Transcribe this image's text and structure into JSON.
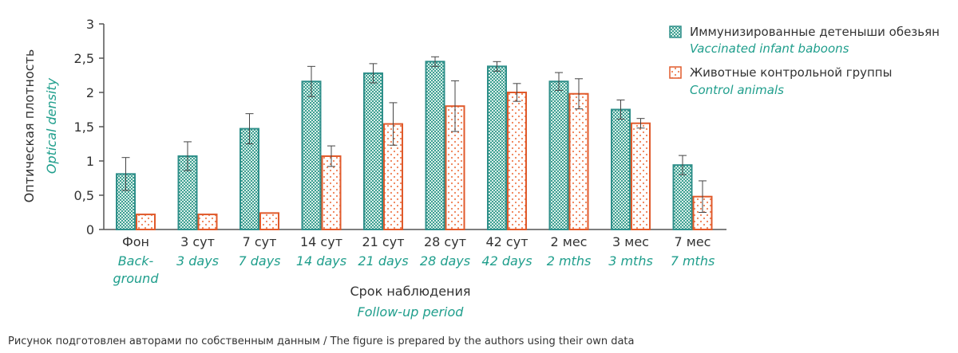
{
  "colors": {
    "vaccinated_border": "#2f8f8a",
    "vaccinated_fill": "#59b3a3",
    "control_border": "#e05a2b",
    "control_dots": "#f08055",
    "en_text": "#1f9e8c",
    "axis": "#555555"
  },
  "chart_data": {
    "type": "bar",
    "ylim": [
      0,
      3
    ],
    "y_ticks": [
      "0",
      "0,5",
      "1",
      "1,5",
      "2",
      "2,5",
      "3"
    ],
    "y_tick_values": [
      0,
      0.5,
      1,
      1.5,
      2,
      2.5,
      3
    ],
    "ylabel": "Оптическая плотность",
    "ylabel_en": "Optical density",
    "xlabel": "Срок наблюдения",
    "xlabel_en": "Follow-up period",
    "categories": [
      "Фон",
      "3 сут",
      "7 сут",
      "14 сут",
      "21 сут",
      "28 сут",
      "42 сут",
      "2 мес",
      "3 мес",
      "7 мес"
    ],
    "categories_en": [
      [
        "Back-",
        "ground"
      ],
      [
        "3 days"
      ],
      [
        "7 days"
      ],
      [
        "14 days"
      ],
      [
        "21 days"
      ],
      [
        "28 days"
      ],
      [
        "42 days"
      ],
      [
        "2 mths"
      ],
      [
        "3 mths"
      ],
      [
        "7 mths"
      ]
    ],
    "series": [
      {
        "name": "Иммунизированные детеныши обезьян",
        "name_en": "Vaccinated infant baboons",
        "values": [
          0.81,
          1.07,
          1.47,
          2.16,
          2.28,
          2.45,
          2.38,
          2.16,
          1.75,
          0.94
        ],
        "errors": [
          0.24,
          0.21,
          0.22,
          0.22,
          0.14,
          0.07,
          0.07,
          0.13,
          0.14,
          0.14
        ]
      },
      {
        "name": "Животные контрольной группы",
        "name_en": "Control animals",
        "values": [
          0.22,
          0.22,
          0.24,
          1.07,
          1.54,
          1.8,
          2.0,
          1.98,
          1.55,
          0.48
        ],
        "errors": [
          0.0,
          0.0,
          0.0,
          0.15,
          0.31,
          0.37,
          0.13,
          0.22,
          0.07,
          0.23
        ]
      }
    ],
    "legend_position": "top-right",
    "grid": false
  },
  "caption": "Рисунок подготовлен авторами по собственным данным / The figure is prepared by the authors using their own data"
}
